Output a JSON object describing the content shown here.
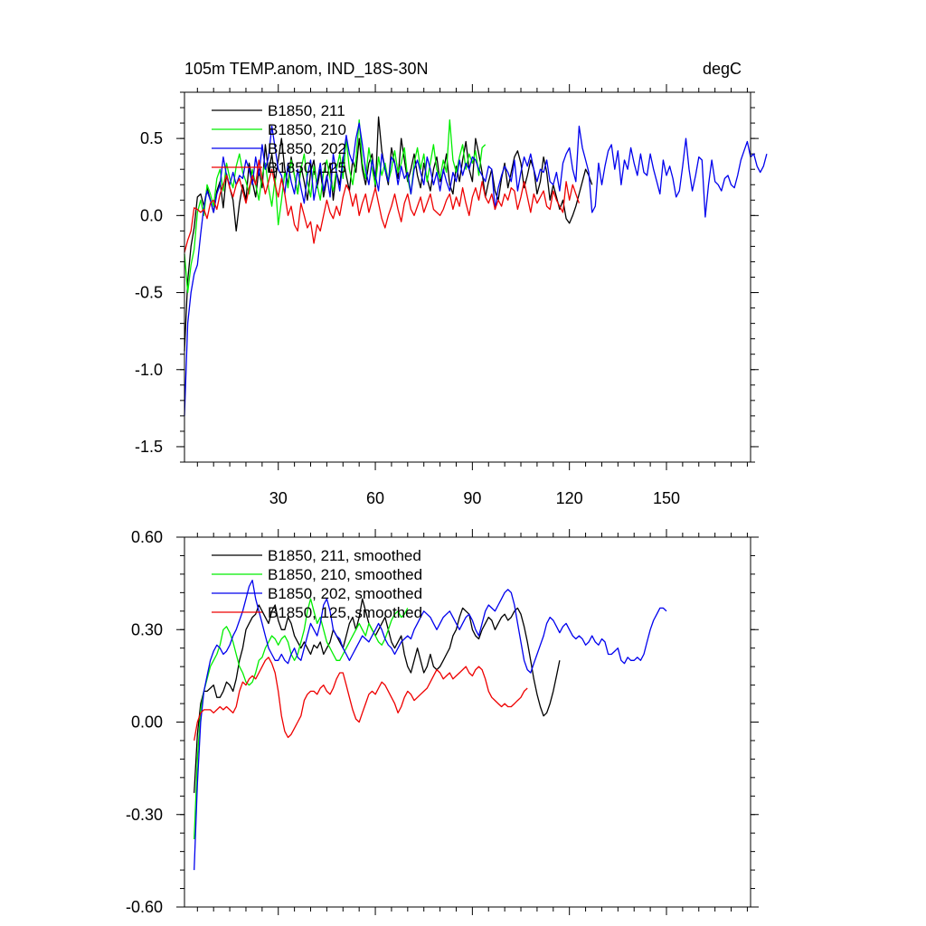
{
  "chart_data": [
    {
      "type": "line",
      "title": "105m TEMP.anom, IND_18S-30N",
      "units_label": "degC",
      "xlim": [
        1,
        176
      ],
      "ylim": [
        -1.6,
        0.8
      ],
      "xticks": [
        30,
        60,
        90,
        120,
        150
      ],
      "xtick_labels": [
        "30",
        "60",
        "90",
        "120",
        "150"
      ],
      "yticks": [
        -1.5,
        -1.0,
        -0.5,
        0.0,
        0.5
      ],
      "ytick_labels": [
        "-1.5",
        "-1.0",
        "-0.5",
        "0.0",
        "0.5"
      ],
      "show_xtick_labels": true,
      "legend_position": "top-left",
      "series": [
        {
          "name": "B1850, 211",
          "color": "#000000",
          "x_start": 1,
          "values": [
            -0.88,
            -0.42,
            -0.2,
            -0.08,
            0.12,
            0.14,
            0.06,
            0.18,
            0.1,
            0.02,
            0.16,
            0.22,
            0.05,
            0.27,
            0.18,
            0.1,
            -0.1,
            0.08,
            0.2,
            0.1,
            0.34,
            0.22,
            0.12,
            0.3,
            0.18,
            0.46,
            0.28,
            0.4,
            0.22,
            0.36,
            0.5,
            0.3,
            0.2,
            0.38,
            0.26,
            0.14,
            0.32,
            0.22,
            0.1,
            0.28,
            0.36,
            0.18,
            0.3,
            0.12,
            0.24,
            0.34,
            0.1,
            0.28,
            0.2,
            0.38,
            0.26,
            0.16,
            0.36,
            0.28,
            0.5,
            0.3,
            0.2,
            0.34,
            0.4,
            0.18,
            0.64,
            0.42,
            0.3,
            0.2,
            0.44,
            0.34,
            0.24,
            0.5,
            0.36,
            0.22,
            0.3,
            0.4,
            0.26,
            0.18,
            0.34,
            0.24,
            0.16,
            0.3,
            0.38,
            0.22,
            0.28,
            0.4,
            0.2,
            0.14,
            0.32,
            0.22,
            0.36,
            0.48,
            0.3,
            0.22,
            0.5,
            0.4,
            0.28,
            0.12,
            0.22,
            0.3,
            0.16,
            0.1,
            0.24,
            0.34,
            0.18,
            0.28,
            0.38,
            0.42,
            0.34,
            0.18,
            0.26,
            0.36,
            0.3,
            0.14,
            0.22,
            0.38,
            0.28,
            0.1,
            0.2,
            0.12,
            0.04,
            0.1,
            -0.02,
            -0.05,
            0.0,
            0.06,
            0.14,
            0.22,
            0.3,
            0.26,
            0.2
          ]
        },
        {
          "name": "B1850, 210",
          "color": "#00ee00",
          "x_start": 1,
          "values": [
            -0.25,
            -0.5,
            -0.32,
            -0.22,
            0.02,
            0.1,
            0.0,
            0.2,
            0.14,
            0.06,
            0.24,
            0.3,
            0.16,
            0.34,
            0.24,
            0.18,
            0.32,
            0.4,
            0.28,
            0.22,
            0.14,
            0.3,
            0.2,
            0.1,
            0.26,
            0.34,
            0.18,
            0.06,
            0.24,
            -0.06,
            0.1,
            0.28,
            0.18,
            0.36,
            0.26,
            0.14,
            0.3,
            0.4,
            0.22,
            0.12,
            0.32,
            0.2,
            0.1,
            0.28,
            0.36,
            0.24,
            0.16,
            0.3,
            0.4,
            0.24,
            0.5,
            0.3,
            0.2,
            0.36,
            0.62,
            0.34,
            0.24,
            0.44,
            0.3,
            0.2,
            0.38,
            0.26,
            0.34,
            0.22,
            0.3,
            0.42,
            0.28,
            0.34,
            0.44,
            0.24,
            0.14,
            0.34,
            0.44,
            0.3,
            0.4,
            0.22,
            0.34,
            0.46,
            0.3,
            0.24,
            0.36,
            0.28,
            0.62,
            0.36,
            0.28,
            0.38,
            0.46,
            0.3,
            0.4,
            0.34,
            0.42,
            0.26,
            0.44,
            0.46
          ]
        },
        {
          "name": "B1850, 202",
          "color": "#0000ee",
          "x_start": 1,
          "values": [
            -1.3,
            -0.7,
            -0.5,
            -0.38,
            -0.32,
            -0.12,
            0.06,
            0.16,
            0.1,
            0.02,
            0.14,
            0.2,
            0.38,
            0.26,
            0.2,
            0.28,
            0.2,
            0.26,
            0.24,
            0.36,
            0.3,
            0.2,
            0.38,
            0.26,
            0.46,
            0.3,
            0.38,
            0.58,
            0.44,
            0.3,
            0.26,
            0.14,
            0.34,
            0.22,
            0.14,
            0.3,
            0.18,
            0.08,
            0.26,
            0.36,
            0.1,
            0.22,
            0.34,
            0.16,
            0.26,
            0.12,
            0.4,
            0.28,
            0.16,
            0.36,
            0.52,
            0.4,
            0.34,
            0.5,
            0.6,
            0.46,
            0.3,
            0.2,
            0.36,
            0.26,
            0.16,
            0.4,
            0.3,
            0.22,
            0.38,
            0.34,
            0.2,
            0.32,
            0.24,
            0.28,
            0.14,
            0.3,
            0.36,
            0.28,
            0.2,
            0.38,
            0.3,
            0.2,
            0.28,
            0.16,
            0.3,
            0.22,
            0.16,
            0.28,
            0.22,
            0.36,
            0.26,
            0.34,
            0.3,
            0.38,
            0.36,
            0.3,
            0.26,
            0.22,
            0.32,
            0.3,
            0.04,
            0.18,
            0.26,
            0.32,
            0.28,
            0.22,
            0.36,
            0.16,
            0.28,
            0.38,
            0.32,
            0.4,
            0.3,
            0.22,
            0.3,
            0.28,
            0.36,
            0.22,
            0.2,
            0.28,
            0.16,
            0.34,
            0.4,
            0.44,
            0.3,
            0.22,
            0.58,
            0.44,
            0.36,
            0.28,
            0.02,
            0.06,
            0.34,
            0.2,
            0.32,
            0.42,
            0.46,
            0.3,
            0.42,
            0.2,
            0.36,
            0.3,
            0.44,
            0.34,
            0.26,
            0.4,
            0.28,
            0.26,
            0.4,
            0.3,
            0.22,
            0.14,
            0.36,
            0.26,
            0.32,
            0.24,
            0.12,
            0.16,
            0.32,
            0.5,
            0.3,
            0.16,
            0.26,
            0.38,
            0.36,
            -0.01,
            0.2,
            0.36,
            0.22,
            0.2,
            0.16,
            0.24,
            0.26,
            0.2,
            0.18,
            0.26,
            0.36,
            0.42,
            0.48,
            0.38,
            0.4,
            0.32,
            0.28,
            0.32,
            0.4
          ]
        },
        {
          "name": "B1850, 125",
          "color": "#ee0000",
          "x_start": 1,
          "values": [
            -0.24,
            -0.16,
            -0.1,
            0.05,
            0.04,
            0.02,
            0.04,
            -0.02,
            0.08,
            0.1,
            0.04,
            0.14,
            0.2,
            0.26,
            0.18,
            0.12,
            0.2,
            0.24,
            0.16,
            0.08,
            0.18,
            0.26,
            0.2,
            0.36,
            0.24,
            0.14,
            0.22,
            0.3,
            0.2,
            0.12,
            0.24,
            0.14,
            0.0,
            0.06,
            -0.06,
            -0.1,
            0.08,
            0.0,
            -0.08,
            -0.04,
            -0.18,
            -0.06,
            -0.1,
            0.0,
            0.1,
            0.02,
            -0.02,
            0.06,
            0.0,
            0.12,
            0.2,
            0.16,
            0.06,
            0.14,
            0.0,
            0.08,
            0.14,
            0.02,
            0.1,
            0.18,
            0.08,
            -0.02,
            -0.08,
            0.0,
            0.06,
            0.14,
            0.04,
            -0.04,
            0.08,
            0.14,
            0.04,
            0.0,
            0.06,
            0.12,
            0.02,
            0.08,
            0.14,
            0.04,
            0.02,
            0.0,
            0.04,
            0.1,
            0.14,
            0.04,
            0.12,
            0.06,
            0.18,
            0.08,
            0.0,
            0.12,
            0.18,
            0.1,
            0.22,
            0.12,
            0.08,
            0.14,
            0.04,
            0.1,
            0.06,
            0.14,
            0.1,
            0.18,
            0.16,
            0.04,
            0.12,
            0.22,
            0.12,
            0.02,
            0.14,
            0.08,
            0.12,
            0.16,
            0.06,
            0.04,
            0.16,
            0.1,
            0.06,
            0.02,
            0.22,
            0.1,
            0.2,
            0.14,
            0.08
          ]
        }
      ]
    },
    {
      "type": "line",
      "title": "",
      "units_label": "",
      "xlim": [
        1,
        176
      ],
      "ylim": [
        -0.6,
        0.6
      ],
      "xticks": [
        30,
        60,
        90,
        120,
        150
      ],
      "xtick_labels": [
        "",
        "",
        "",
        "",
        ""
      ],
      "yticks": [
        -0.6,
        -0.3,
        0.0,
        0.3,
        0.6
      ],
      "ytick_labels": [
        "-0.60",
        "-0.30",
        "0.00",
        "0.30",
        "0.60"
      ],
      "show_xtick_labels": false,
      "legend_position": "top-left",
      "series": [
        {
          "name": "B1850, 211, smoothed",
          "color": "#000000",
          "x_start": 4,
          "values": [
            -0.23,
            -0.04,
            0.06,
            0.1,
            0.1,
            0.11,
            0.12,
            0.08,
            0.08,
            0.1,
            0.13,
            0.12,
            0.1,
            0.14,
            0.2,
            0.24,
            0.3,
            0.32,
            0.34,
            0.35,
            0.38,
            0.36,
            0.34,
            0.32,
            0.36,
            0.38,
            0.33,
            0.3,
            0.3,
            0.34,
            0.32,
            0.28,
            0.26,
            0.24,
            0.26,
            0.24,
            0.22,
            0.25,
            0.24,
            0.26,
            0.22,
            0.24,
            0.26,
            0.3,
            0.28,
            0.26,
            0.24,
            0.28,
            0.32,
            0.34,
            0.3,
            0.34,
            0.4,
            0.36,
            0.32,
            0.3,
            0.28,
            0.3,
            0.32,
            0.34,
            0.3,
            0.26,
            0.24,
            0.26,
            0.28,
            0.22,
            0.18,
            0.16,
            0.2,
            0.24,
            0.2,
            0.16,
            0.18,
            0.22,
            0.18,
            0.17,
            0.18,
            0.2,
            0.22,
            0.24,
            0.28,
            0.3,
            0.34,
            0.37,
            0.36,
            0.35,
            0.3,
            0.28,
            0.27,
            0.3,
            0.32,
            0.34,
            0.33,
            0.3,
            0.32,
            0.34,
            0.35,
            0.33,
            0.34,
            0.36,
            0.37,
            0.35,
            0.31,
            0.26,
            0.2,
            0.14,
            0.09,
            0.05,
            0.02,
            0.03,
            0.06,
            0.1,
            0.15,
            0.2
          ]
        },
        {
          "name": "B1850, 210, smoothed",
          "color": "#00ee00",
          "x_start": 4,
          "values": [
            -0.38,
            -0.12,
            0.04,
            0.1,
            0.14,
            0.18,
            0.2,
            0.22,
            0.25,
            0.3,
            0.31,
            0.29,
            0.26,
            0.22,
            0.18,
            0.16,
            0.13,
            0.12,
            0.13,
            0.16,
            0.2,
            0.21,
            0.24,
            0.26,
            0.28,
            0.27,
            0.25,
            0.27,
            0.28,
            0.26,
            0.22,
            0.2,
            0.22,
            0.26,
            0.3,
            0.36,
            0.4,
            0.36,
            0.32,
            0.34,
            0.3,
            0.26,
            0.24,
            0.22,
            0.2,
            0.2,
            0.22,
            0.24,
            0.26,
            0.28,
            0.3,
            0.32,
            0.3,
            0.28,
            0.32,
            0.3,
            0.28,
            0.26,
            0.25,
            0.27,
            0.3,
            0.33,
            0.35,
            0.36,
            0.34,
            0.35,
            0.37
          ]
        },
        {
          "name": "B1850, 202, smoothed",
          "color": "#0000ee",
          "x_start": 4,
          "values": [
            -0.48,
            -0.2,
            0.0,
            0.1,
            0.15,
            0.2,
            0.23,
            0.25,
            0.24,
            0.22,
            0.23,
            0.25,
            0.28,
            0.3,
            0.33,
            0.36,
            0.4,
            0.44,
            0.46,
            0.4,
            0.36,
            0.32,
            0.28,
            0.24,
            0.22,
            0.2,
            0.2,
            0.22,
            0.2,
            0.19,
            0.22,
            0.24,
            0.21,
            0.2,
            0.24,
            0.28,
            0.32,
            0.3,
            0.28,
            0.32,
            0.38,
            0.4,
            0.36,
            0.3,
            0.28,
            0.27,
            0.24,
            0.22,
            0.2,
            0.22,
            0.24,
            0.26,
            0.28,
            0.27,
            0.26,
            0.28,
            0.3,
            0.32,
            0.3,
            0.27,
            0.25,
            0.24,
            0.22,
            0.24,
            0.26,
            0.27,
            0.28,
            0.27,
            0.3,
            0.32,
            0.34,
            0.36,
            0.35,
            0.34,
            0.32,
            0.3,
            0.32,
            0.34,
            0.35,
            0.36,
            0.34,
            0.32,
            0.3,
            0.32,
            0.34,
            0.35,
            0.33,
            0.3,
            0.28,
            0.32,
            0.36,
            0.38,
            0.37,
            0.36,
            0.38,
            0.4,
            0.42,
            0.43,
            0.42,
            0.38,
            0.32,
            0.26,
            0.2,
            0.17,
            0.16,
            0.19,
            0.22,
            0.25,
            0.28,
            0.32,
            0.34,
            0.33,
            0.31,
            0.29,
            0.31,
            0.32,
            0.3,
            0.28,
            0.27,
            0.28,
            0.27,
            0.25,
            0.26,
            0.28,
            0.26,
            0.25,
            0.27,
            0.26,
            0.22,
            0.22,
            0.23,
            0.24,
            0.2,
            0.19,
            0.21,
            0.2,
            0.2,
            0.21,
            0.2,
            0.22,
            0.26,
            0.3,
            0.33,
            0.35,
            0.37,
            0.37,
            0.36
          ]
        },
        {
          "name": "B1850, 125, smoothed",
          "color": "#ee0000",
          "x_start": 4,
          "values": [
            -0.06,
            0.0,
            0.03,
            0.04,
            0.04,
            0.04,
            0.03,
            0.04,
            0.05,
            0.04,
            0.05,
            0.04,
            0.03,
            0.05,
            0.1,
            0.13,
            0.12,
            0.14,
            0.15,
            0.14,
            0.16,
            0.18,
            0.2,
            0.21,
            0.19,
            0.16,
            0.1,
            0.02,
            -0.03,
            -0.05,
            -0.04,
            -0.02,
            0.0,
            0.02,
            0.07,
            0.09,
            0.1,
            0.1,
            0.09,
            0.11,
            0.12,
            0.1,
            0.09,
            0.11,
            0.14,
            0.16,
            0.16,
            0.12,
            0.08,
            0.04,
            0.01,
            0.0,
            0.03,
            0.06,
            0.09,
            0.1,
            0.09,
            0.11,
            0.13,
            0.12,
            0.1,
            0.08,
            0.06,
            0.03,
            0.05,
            0.08,
            0.1,
            0.09,
            0.07,
            0.08,
            0.09,
            0.1,
            0.11,
            0.13,
            0.15,
            0.17,
            0.16,
            0.14,
            0.15,
            0.16,
            0.14,
            0.15,
            0.16,
            0.17,
            0.18,
            0.16,
            0.15,
            0.17,
            0.18,
            0.17,
            0.14,
            0.1,
            0.08,
            0.07,
            0.06,
            0.05,
            0.06,
            0.05,
            0.05,
            0.06,
            0.07,
            0.08,
            0.1,
            0.11
          ]
        }
      ]
    }
  ]
}
